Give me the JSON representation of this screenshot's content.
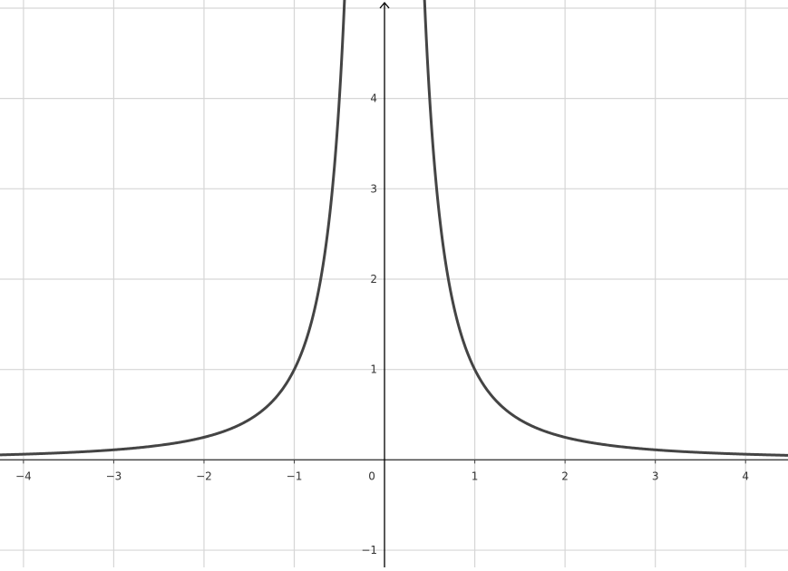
{
  "chart_data": {
    "type": "line",
    "title": "",
    "xlabel": "",
    "ylabel": "",
    "xlim": [
      -4.26,
      4.47
    ],
    "ylim": [
      -1.19,
      5.09
    ],
    "grid": true,
    "x_ticks": [
      -4,
      -3,
      -2,
      -1,
      0,
      1,
      2,
      3,
      4
    ],
    "x_tick_labels": [
      "−4",
      "−3",
      "−2",
      "−1",
      "0",
      "1",
      "2",
      "3",
      "4"
    ],
    "y_ticks": [
      -1,
      1,
      2,
      3,
      4
    ],
    "y_tick_labels": [
      "−1",
      "1",
      "2",
      "3",
      "4"
    ],
    "series": [
      {
        "function": "1/x^2",
        "color": "#444444"
      }
    ],
    "colors": {
      "grid": "#d6d6d6",
      "axis": "#000000",
      "curve": "#444444"
    }
  }
}
